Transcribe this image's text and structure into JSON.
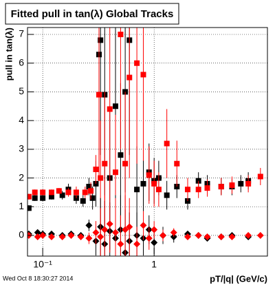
{
  "chart_data": {
    "type": "scatter",
    "title": "Fitted pull in tan(λ)  Global Tracks",
    "y_label": "pull in tan(λ)",
    "x_label": "pT/|q| (GeV/c)",
    "footer": "Wed Oct  8 18:30:27 2014",
    "xlog": true,
    "grid": true,
    "xlim": [
      0.073,
      10.4
    ],
    "ylim": [
      -0.72,
      7.24
    ],
    "xticks": [
      {
        "value": 0.1,
        "label": "10⁻¹"
      },
      {
        "value": 1,
        "label": "1"
      }
    ],
    "yticks": [
      0,
      1,
      2,
      3,
      4,
      5,
      6,
      7
    ],
    "series": [
      {
        "color": "#000000",
        "marker": "square",
        "x": [
          0.075,
          0.085,
          0.1,
          0.12,
          0.15,
          0.17,
          0.2,
          0.23,
          0.26,
          0.28,
          0.3,
          0.32,
          0.33,
          0.36,
          0.4,
          0.45,
          0.5,
          0.55,
          0.6,
          0.7,
          0.8,
          0.9,
          1.0,
          1.1,
          1.3,
          1.6,
          2.0,
          2.5,
          3.0,
          4.0,
          5.0,
          6.0,
          7.0
        ],
        "values": [
          0.95,
          1.3,
          1.3,
          1.35,
          1.4,
          1.6,
          1.3,
          1.2,
          1.7,
          1.3,
          1.8,
          6.3,
          6.8,
          4.9,
          2.0,
          4.5,
          2.8,
          5.0,
          6.8,
          1.6,
          1.8,
          2.2,
          1.9,
          2.0,
          1.4,
          1.7,
          1.2,
          1.9,
          1.8,
          1.7,
          1.7,
          1.8,
          1.9
        ],
        "errors": [
          0.1,
          0.1,
          0.1,
          0.1,
          0.15,
          0.2,
          0.2,
          0.2,
          0.3,
          0.4,
          0.8,
          3.0,
          4.0,
          3.5,
          2.5,
          3.0,
          2.5,
          3.5,
          4.0,
          1.5,
          1.2,
          1.0,
          0.8,
          0.6,
          0.5,
          0.4,
          0.3,
          0.3,
          0.3,
          0.3,
          0.3,
          0.3,
          0.3
        ]
      },
      {
        "color": "#ff0000",
        "marker": "square",
        "x": [
          0.075,
          0.085,
          0.1,
          0.12,
          0.14,
          0.17,
          0.2,
          0.24,
          0.27,
          0.3,
          0.32,
          0.33,
          0.36,
          0.4,
          0.45,
          0.5,
          0.55,
          0.6,
          0.7,
          0.8,
          0.9,
          1.0,
          1.1,
          1.3,
          1.6,
          2.0,
          2.5,
          3.0,
          4.0,
          5.0,
          7.0,
          9.0
        ],
        "values": [
          1.35,
          1.5,
          1.5,
          1.5,
          1.55,
          1.5,
          1.5,
          1.5,
          1.55,
          2.3,
          4.9,
          2.0,
          2.5,
          4.4,
          2.2,
          7.0,
          2.5,
          5.5,
          6.0,
          5.6,
          2.1,
          1.8,
          1.6,
          3.2,
          2.5,
          1.6,
          1.6,
          1.65,
          1.7,
          1.75,
          1.8,
          2.05
        ],
        "errors": [
          0.1,
          0.1,
          0.1,
          0.1,
          0.1,
          0.15,
          0.2,
          0.2,
          0.3,
          0.5,
          3.0,
          2.0,
          2.5,
          3.0,
          2.0,
          4.0,
          2.5,
          3.5,
          3.5,
          3.0,
          1.0,
          0.8,
          0.6,
          1.2,
          0.8,
          0.4,
          0.3,
          0.3,
          0.3,
          0.3,
          0.3,
          0.3
        ]
      },
      {
        "color": "#000000",
        "marker": "diamond",
        "x": [
          0.075,
          0.09,
          0.1,
          0.12,
          0.15,
          0.18,
          0.22,
          0.26,
          0.3,
          0.33,
          0.36,
          0.4,
          0.45,
          0.5,
          0.55,
          0.6,
          0.7,
          0.8,
          0.9,
          1.0,
          1.2,
          1.5,
          2.0,
          2.5,
          3.0,
          4.0,
          5.0,
          7.0
        ],
        "values": [
          0.05,
          0.1,
          0.05,
          0.05,
          0.0,
          0.05,
          0.0,
          0.35,
          -0.2,
          0.3,
          -0.3,
          0.15,
          -0.1,
          0.2,
          -0.6,
          -0.2,
          0.0,
          -0.1,
          0.2,
          -0.25,
          0.0,
          -0.05,
          0.05,
          0.0,
          -0.1,
          -0.05,
          0.0,
          -0.05
        ],
        "errors": [
          0.05,
          0.05,
          0.05,
          0.05,
          0.05,
          0.1,
          0.1,
          0.2,
          0.5,
          1.0,
          1.5,
          1.0,
          1.5,
          1.2,
          1.5,
          1.0,
          0.8,
          0.6,
          0.5,
          0.4,
          0.3,
          0.2,
          0.1,
          0.1,
          0.1,
          0.1,
          0.1,
          0.1
        ]
      },
      {
        "color": "#ff0000",
        "marker": "diamond",
        "x": [
          0.075,
          0.09,
          0.1,
          0.12,
          0.15,
          0.18,
          0.22,
          0.26,
          0.3,
          0.33,
          0.36,
          0.4,
          0.45,
          0.5,
          0.55,
          0.6,
          0.7,
          0.8,
          0.9,
          1.0,
          1.2,
          1.5,
          2.0,
          2.5,
          3.0,
          4.0,
          5.0,
          7.0,
          9.0
        ],
        "values": [
          0.0,
          -0.05,
          0.0,
          -0.05,
          -0.05,
          0.0,
          -0.05,
          -0.1,
          0.1,
          -0.05,
          0.2,
          0.4,
          0.1,
          -0.3,
          0.2,
          0.3,
          -0.3,
          0.35,
          -0.1,
          0.2,
          0.0,
          0.1,
          -0.05,
          0.0,
          -0.05,
          -0.05,
          -0.05,
          0.0,
          0.0
        ],
        "errors": [
          0.05,
          0.05,
          0.05,
          0.05,
          0.05,
          0.05,
          0.1,
          0.2,
          0.4,
          1.0,
          1.2,
          1.0,
          1.2,
          1.0,
          1.2,
          1.0,
          0.6,
          0.5,
          0.4,
          0.3,
          0.2,
          0.15,
          0.1,
          0.1,
          0.1,
          0.1,
          0.1,
          0.1,
          0.1
        ]
      }
    ]
  }
}
